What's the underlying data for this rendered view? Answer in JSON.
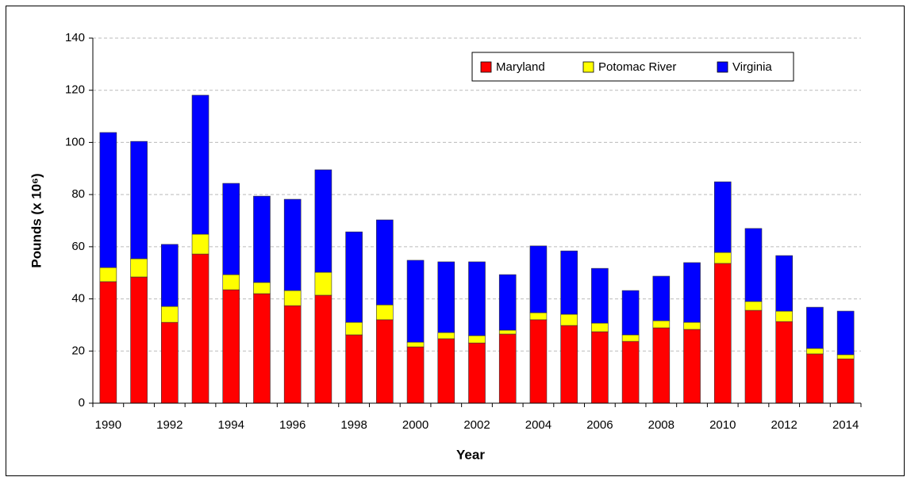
{
  "chart_data": {
    "type": "stacked_bar",
    "x_label": "Year",
    "y_label": "Pounds (x 10⁶)",
    "categories": [
      "1990",
      null,
      "1992",
      null,
      "1994",
      null,
      "1996",
      null,
      "1998",
      null,
      "2000",
      null,
      "2002",
      null,
      "2004",
      null,
      "2006",
      null,
      "2008",
      null,
      "2010",
      null,
      "2012",
      null,
      "2014"
    ],
    "series": [
      {
        "name": "Maryland",
        "color": "#ff0000",
        "values": [
          46.6,
          48.4,
          31.0,
          57.2,
          43.5,
          42.0,
          37.4,
          41.4,
          26.2,
          32.0,
          21.6,
          24.7,
          23.1,
          26.5,
          32.0,
          29.8,
          27.4,
          23.7,
          28.9,
          28.3,
          53.6,
          35.6,
          31.3,
          18.9,
          17.0
        ]
      },
      {
        "name": "Potomac River",
        "color": "#ffff00",
        "values": [
          5.4,
          7.0,
          6.1,
          7.6,
          5.8,
          4.3,
          5.8,
          8.8,
          4.8,
          5.7,
          1.8,
          2.4,
          2.8,
          1.5,
          2.7,
          4.3,
          3.3,
          2.5,
          2.7,
          2.7,
          4.2,
          3.4,
          4.0,
          2.1,
          1.6
        ]
      },
      {
        "name": "Virginia",
        "color": "#0000ff",
        "values": [
          51.8,
          45.0,
          23.8,
          53.3,
          35.0,
          33.1,
          35.0,
          39.3,
          34.7,
          32.6,
          31.4,
          27.1,
          28.3,
          21.3,
          25.6,
          24.3,
          21.0,
          17.0,
          17.1,
          22.9,
          27.1,
          28.0,
          21.3,
          15.8,
          16.7
        ]
      }
    ],
    "ylim": [
      0,
      140
    ],
    "yticks": [
      0,
      20,
      40,
      60,
      80,
      100,
      120,
      140
    ],
    "grid": true,
    "legend": "upper-right"
  }
}
